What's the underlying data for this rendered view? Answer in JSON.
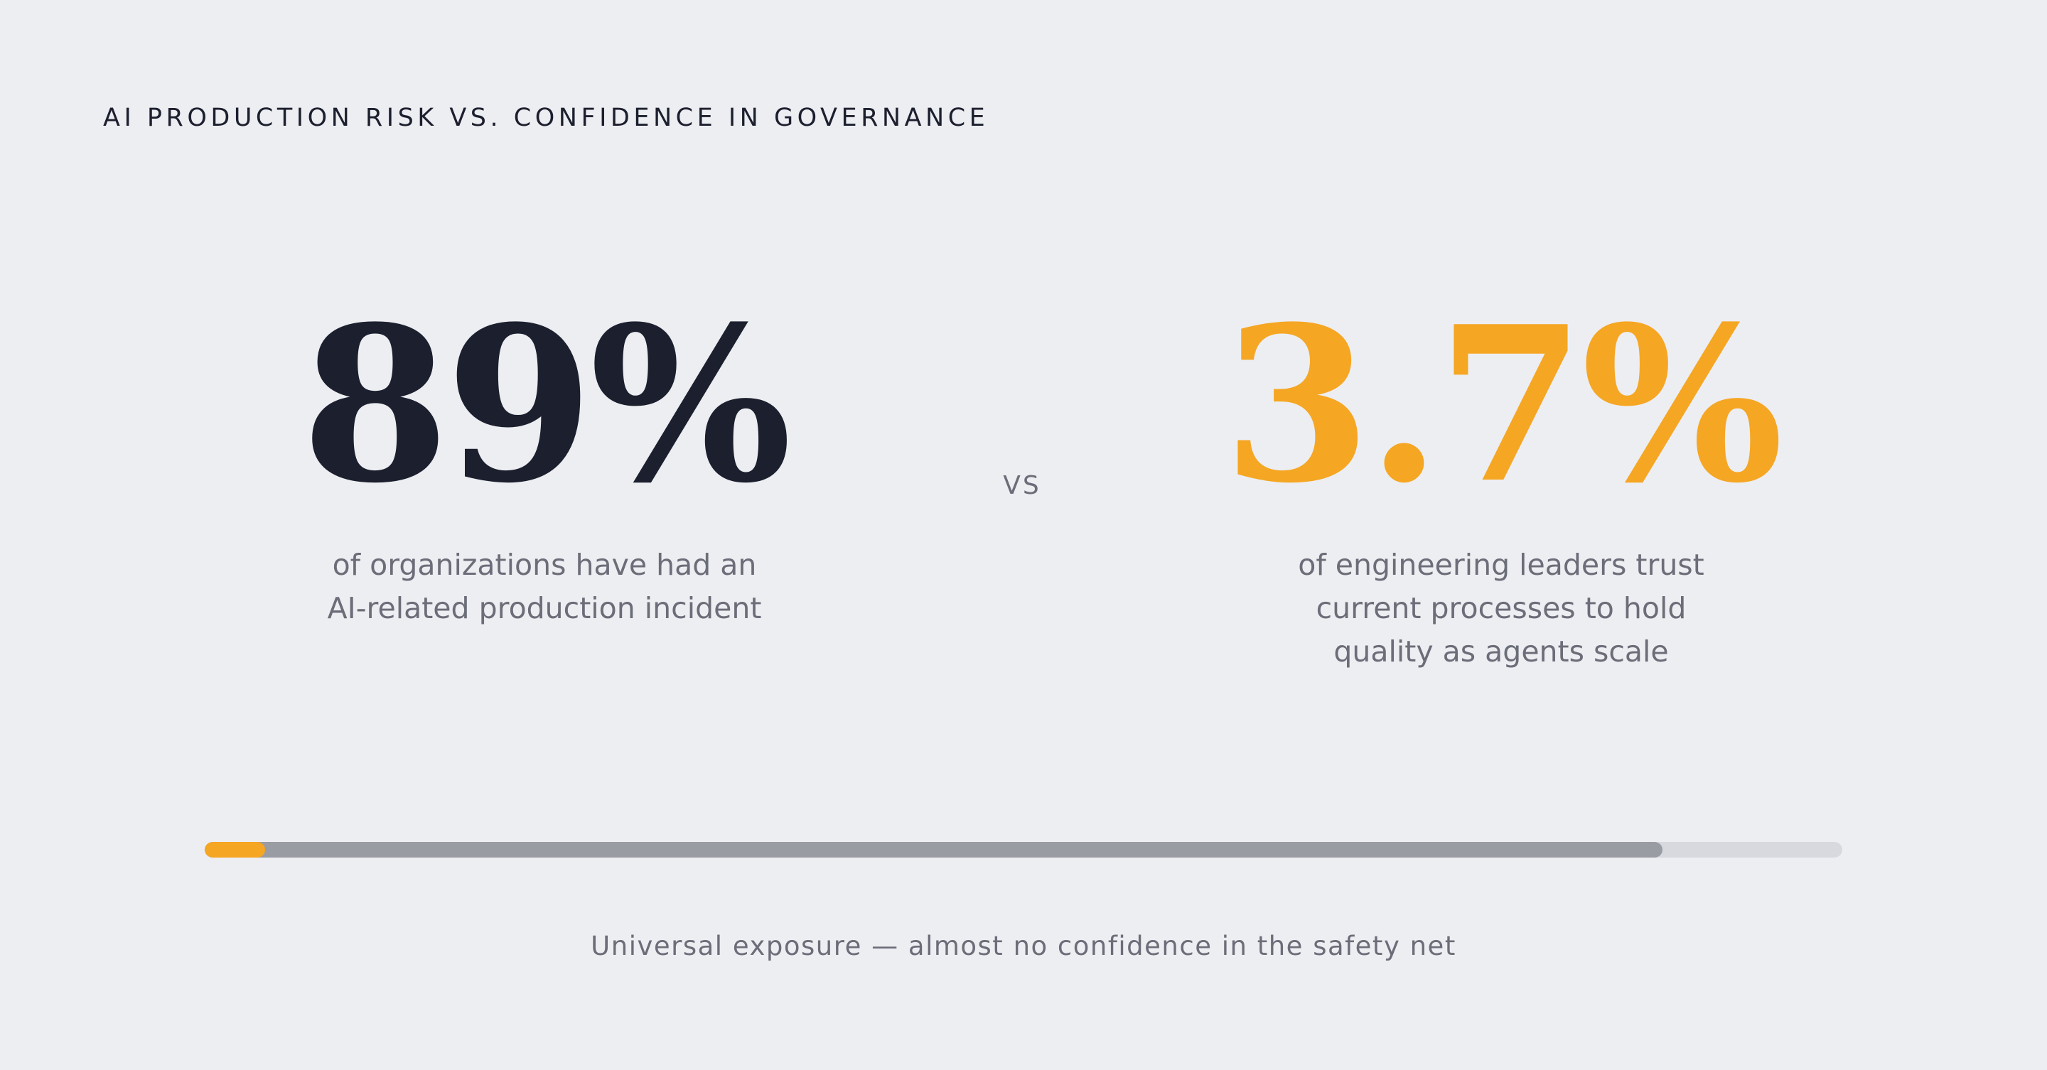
{
  "title": "AI PRODUCTION RISK VS. CONFIDENCE IN GOVERNANCE",
  "stats": [
    {
      "value": 89,
      "value_label": "89%",
      "caption": "of organizations have had an AI-related production incident",
      "color": "#1c1f2e"
    },
    {
      "value": 3.7,
      "value_label": "3.7%",
      "caption": "of engineering leaders trust current processes to hold quality as agents scale",
      "color": "#f5a623"
    }
  ],
  "separator": "VS",
  "bar": {
    "xlim": [
      0,
      100
    ],
    "colors": [
      "#9a9ca3",
      "#f5a623"
    ]
  },
  "footer": "Universal exposure — almost no confidence in the safety net"
}
